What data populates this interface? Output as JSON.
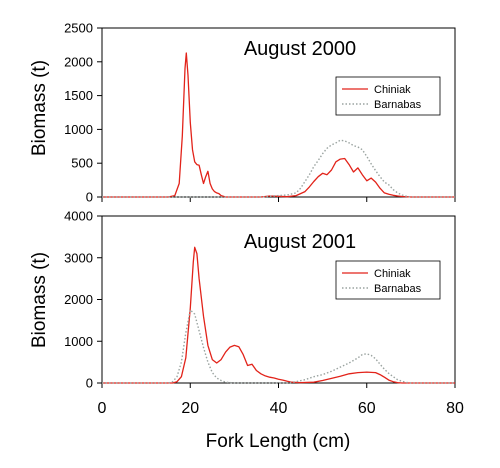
{
  "figure": {
    "xlabel": "Fork Length (cm)",
    "ylabel": "Biomass (t)"
  },
  "chart_data": [
    {
      "type": "line",
      "title": "August 2000",
      "xlabel": "Fork Length (cm)",
      "ylabel": "Biomass (t)",
      "xlim": [
        0,
        80
      ],
      "ylim": [
        0,
        2500
      ],
      "xticks": [
        0,
        20,
        40,
        60,
        80
      ],
      "yticks": [
        0,
        500,
        1000,
        1500,
        2000,
        2500
      ],
      "grid": false,
      "legend_position": "right",
      "series": [
        {
          "name": "Chiniak",
          "color": "#e2231a",
          "style": "solid",
          "points": [
            [
              0,
              0
            ],
            [
              15,
              0
            ],
            [
              16.5,
              20
            ],
            [
              17.5,
              200
            ],
            [
              18.2,
              900
            ],
            [
              18.8,
              1900
            ],
            [
              19.1,
              2130
            ],
            [
              19.5,
              1800
            ],
            [
              20,
              1100
            ],
            [
              20.5,
              700
            ],
            [
              21,
              520
            ],
            [
              21.5,
              480
            ],
            [
              22,
              470
            ],
            [
              22.5,
              330
            ],
            [
              23,
              200
            ],
            [
              23.5,
              300
            ],
            [
              24,
              380
            ],
            [
              24.5,
              200
            ],
            [
              25,
              120
            ],
            [
              25.5,
              80
            ],
            [
              26,
              60
            ],
            [
              26.5,
              50
            ],
            [
              27,
              20
            ],
            [
              28,
              0
            ],
            [
              36,
              0
            ],
            [
              38,
              15
            ],
            [
              40,
              10
            ],
            [
              42,
              5
            ],
            [
              44,
              20
            ],
            [
              46,
              80
            ],
            [
              47,
              150
            ],
            [
              48,
              230
            ],
            [
              49,
              300
            ],
            [
              50,
              350
            ],
            [
              51,
              330
            ],
            [
              52,
              400
            ],
            [
              53,
              520
            ],
            [
              54,
              560
            ],
            [
              55,
              570
            ],
            [
              56,
              480
            ],
            [
              57,
              370
            ],
            [
              58,
              430
            ],
            [
              59,
              330
            ],
            [
              60,
              240
            ],
            [
              61,
              280
            ],
            [
              62,
              220
            ],
            [
              63,
              130
            ],
            [
              64,
              60
            ],
            [
              65,
              40
            ],
            [
              66,
              25
            ],
            [
              67,
              15
            ],
            [
              68,
              8
            ],
            [
              70,
              0
            ],
            [
              80,
              0
            ]
          ]
        },
        {
          "name": "Barnabas",
          "color": "#9aa3a0",
          "style": "dotted",
          "points": [
            [
              0,
              0
            ],
            [
              36,
              0
            ],
            [
              38,
              10
            ],
            [
              40,
              20
            ],
            [
              42,
              30
            ],
            [
              44,
              60
            ],
            [
              45,
              130
            ],
            [
              46,
              230
            ],
            [
              47,
              330
            ],
            [
              48,
              450
            ],
            [
              49,
              540
            ],
            [
              50,
              640
            ],
            [
              51,
              720
            ],
            [
              52,
              770
            ],
            [
              53,
              800
            ],
            [
              54,
              840
            ],
            [
              55,
              830
            ],
            [
              56,
              800
            ],
            [
              57,
              760
            ],
            [
              58,
              740
            ],
            [
              59,
              700
            ],
            [
              60,
              600
            ],
            [
              61,
              490
            ],
            [
              62,
              390
            ],
            [
              63,
              300
            ],
            [
              64,
              220
            ],
            [
              65,
              180
            ],
            [
              66,
              110
            ],
            [
              67,
              60
            ],
            [
              68,
              30
            ],
            [
              69,
              10
            ],
            [
              70,
              0
            ],
            [
              80,
              0
            ]
          ]
        }
      ]
    },
    {
      "type": "line",
      "title": "August 2001",
      "xlabel": "Fork Length (cm)",
      "ylabel": "Biomass (t)",
      "xlim": [
        0,
        80
      ],
      "ylim": [
        0,
        4000
      ],
      "xticks": [
        0,
        20,
        40,
        60,
        80
      ],
      "yticks": [
        0,
        1000,
        2000,
        3000,
        4000
      ],
      "grid": false,
      "legend_position": "right",
      "series": [
        {
          "name": "Chiniak",
          "color": "#e2231a",
          "style": "solid",
          "points": [
            [
              0,
              0
            ],
            [
              16,
              0
            ],
            [
              17,
              30
            ],
            [
              18,
              150
            ],
            [
              19,
              600
            ],
            [
              20,
              1800
            ],
            [
              20.7,
              2900
            ],
            [
              21,
              3250
            ],
            [
              21.5,
              3100
            ],
            [
              22,
              2500
            ],
            [
              23,
              1600
            ],
            [
              24,
              900
            ],
            [
              25,
              560
            ],
            [
              26,
              480
            ],
            [
              27,
              560
            ],
            [
              28,
              740
            ],
            [
              29,
              860
            ],
            [
              30,
              900
            ],
            [
              31,
              870
            ],
            [
              32,
              680
            ],
            [
              33,
              420
            ],
            [
              34,
              450
            ],
            [
              35,
              300
            ],
            [
              36,
              220
            ],
            [
              37,
              170
            ],
            [
              38,
              140
            ],
            [
              39,
              120
            ],
            [
              40,
              90
            ],
            [
              41,
              70
            ],
            [
              42,
              40
            ],
            [
              43,
              20
            ],
            [
              45,
              10
            ],
            [
              48,
              20
            ],
            [
              50,
              60
            ],
            [
              52,
              110
            ],
            [
              54,
              160
            ],
            [
              56,
              220
            ],
            [
              58,
              250
            ],
            [
              60,
              260
            ],
            [
              62,
              250
            ],
            [
              63,
              200
            ],
            [
              64,
              140
            ],
            [
              65,
              70
            ],
            [
              66,
              30
            ],
            [
              67,
              10
            ],
            [
              68,
              0
            ],
            [
              80,
              0
            ]
          ]
        },
        {
          "name": "Barnabas",
          "color": "#9aa3a0",
          "style": "dotted",
          "points": [
            [
              0,
              0
            ],
            [
              15,
              0
            ],
            [
              16,
              30
            ],
            [
              17,
              150
            ],
            [
              18,
              500
            ],
            [
              19,
              1200
            ],
            [
              20,
              1750
            ],
            [
              21,
              1650
            ],
            [
              22,
              1250
            ],
            [
              23,
              850
            ],
            [
              24,
              500
            ],
            [
              25,
              250
            ],
            [
              26,
              120
            ],
            [
              27,
              60
            ],
            [
              28,
              20
            ],
            [
              30,
              0
            ],
            [
              42,
              0
            ],
            [
              44,
              30
            ],
            [
              46,
              80
            ],
            [
              48,
              150
            ],
            [
              50,
              200
            ],
            [
              52,
              280
            ],
            [
              54,
              380
            ],
            [
              56,
              480
            ],
            [
              58,
              600
            ],
            [
              59,
              680
            ],
            [
              60,
              700
            ],
            [
              61,
              660
            ],
            [
              62,
              580
            ],
            [
              63,
              450
            ],
            [
              64,
              330
            ],
            [
              65,
              230
            ],
            [
              66,
              150
            ],
            [
              67,
              80
            ],
            [
              68,
              40
            ],
            [
              69,
              15
            ],
            [
              70,
              0
            ],
            [
              80,
              0
            ]
          ]
        }
      ]
    }
  ]
}
